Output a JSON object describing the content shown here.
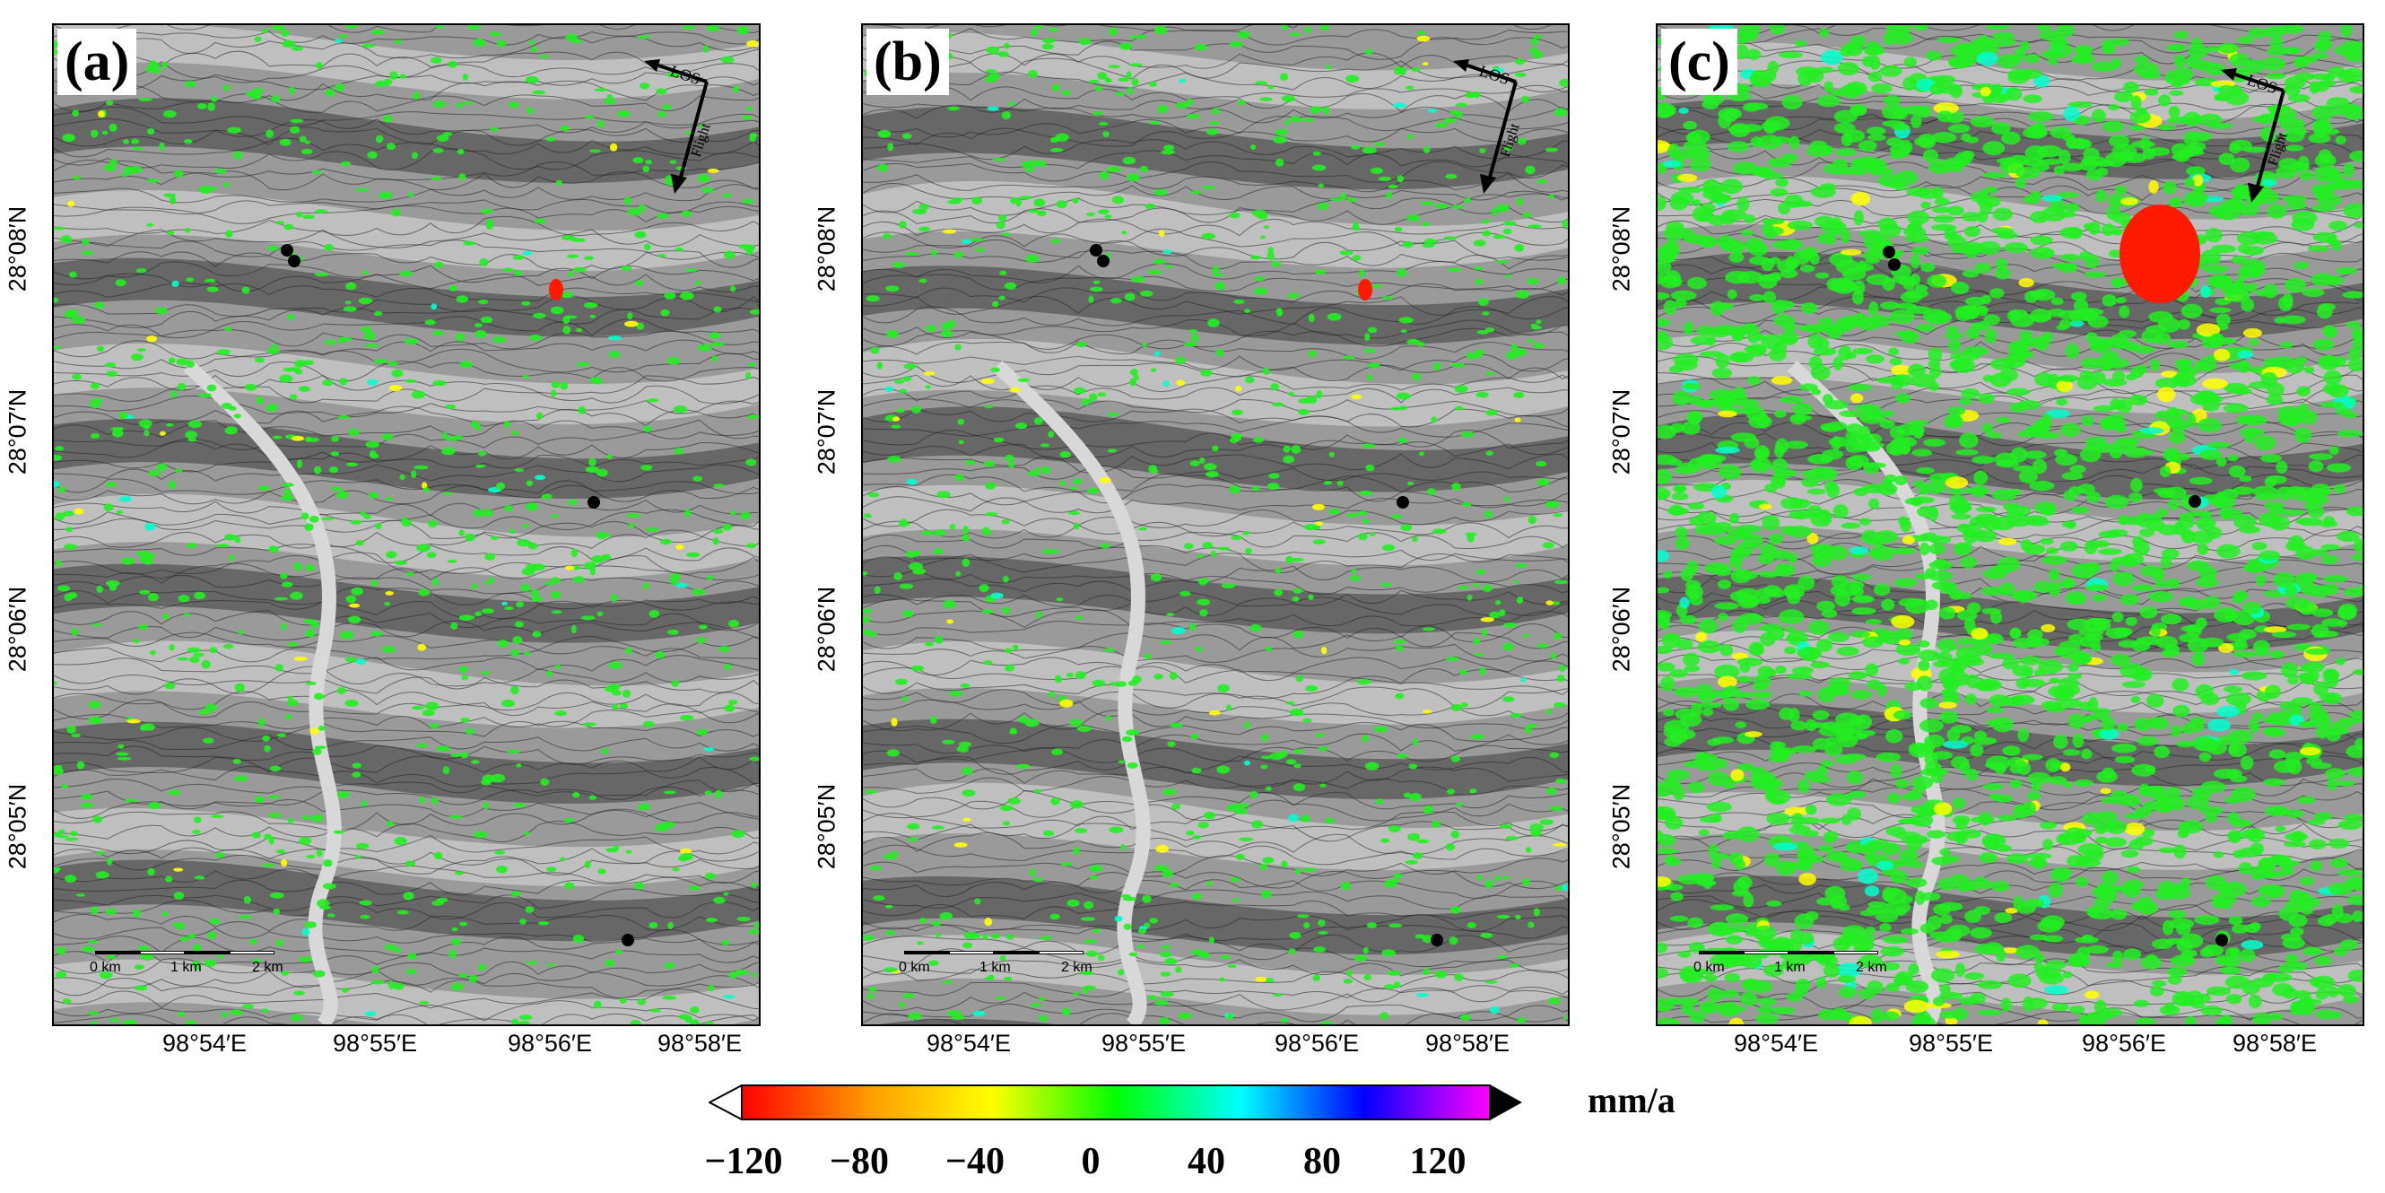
{
  "panels": [
    {
      "id": "a",
      "label": "(a)",
      "los_label": "LOS",
      "az_label": "Flight"
    },
    {
      "id": "b",
      "label": "(b)",
      "los_label": "LOS",
      "az_label": "Flight"
    },
    {
      "id": "c",
      "label": "(c)",
      "los_label": "LOS",
      "az_label": "Flight"
    }
  ],
  "axes": {
    "lat_labels": [
      "28°08′N",
      "28°07′N",
      "28°06′N",
      "28°05′N"
    ],
    "lon_labels": [
      "98°54′E",
      "98°55′E",
      "98°56′E",
      "98°58′E"
    ]
  },
  "scale_bar": {
    "labels": [
      "0 km",
      "1 km",
      "2 km"
    ]
  },
  "colorbar": {
    "unit": "mm/a",
    "tick_labels": [
      "−120",
      "−80",
      "−40",
      "0",
      "40",
      "80",
      "120"
    ],
    "range": [
      -120,
      140
    ],
    "colors": [
      "#ff0000",
      "#ff9a00",
      "#ffff00",
      "#00ff00",
      "#00ffff",
      "#0000ff",
      "#ff00ff"
    ]
  }
}
